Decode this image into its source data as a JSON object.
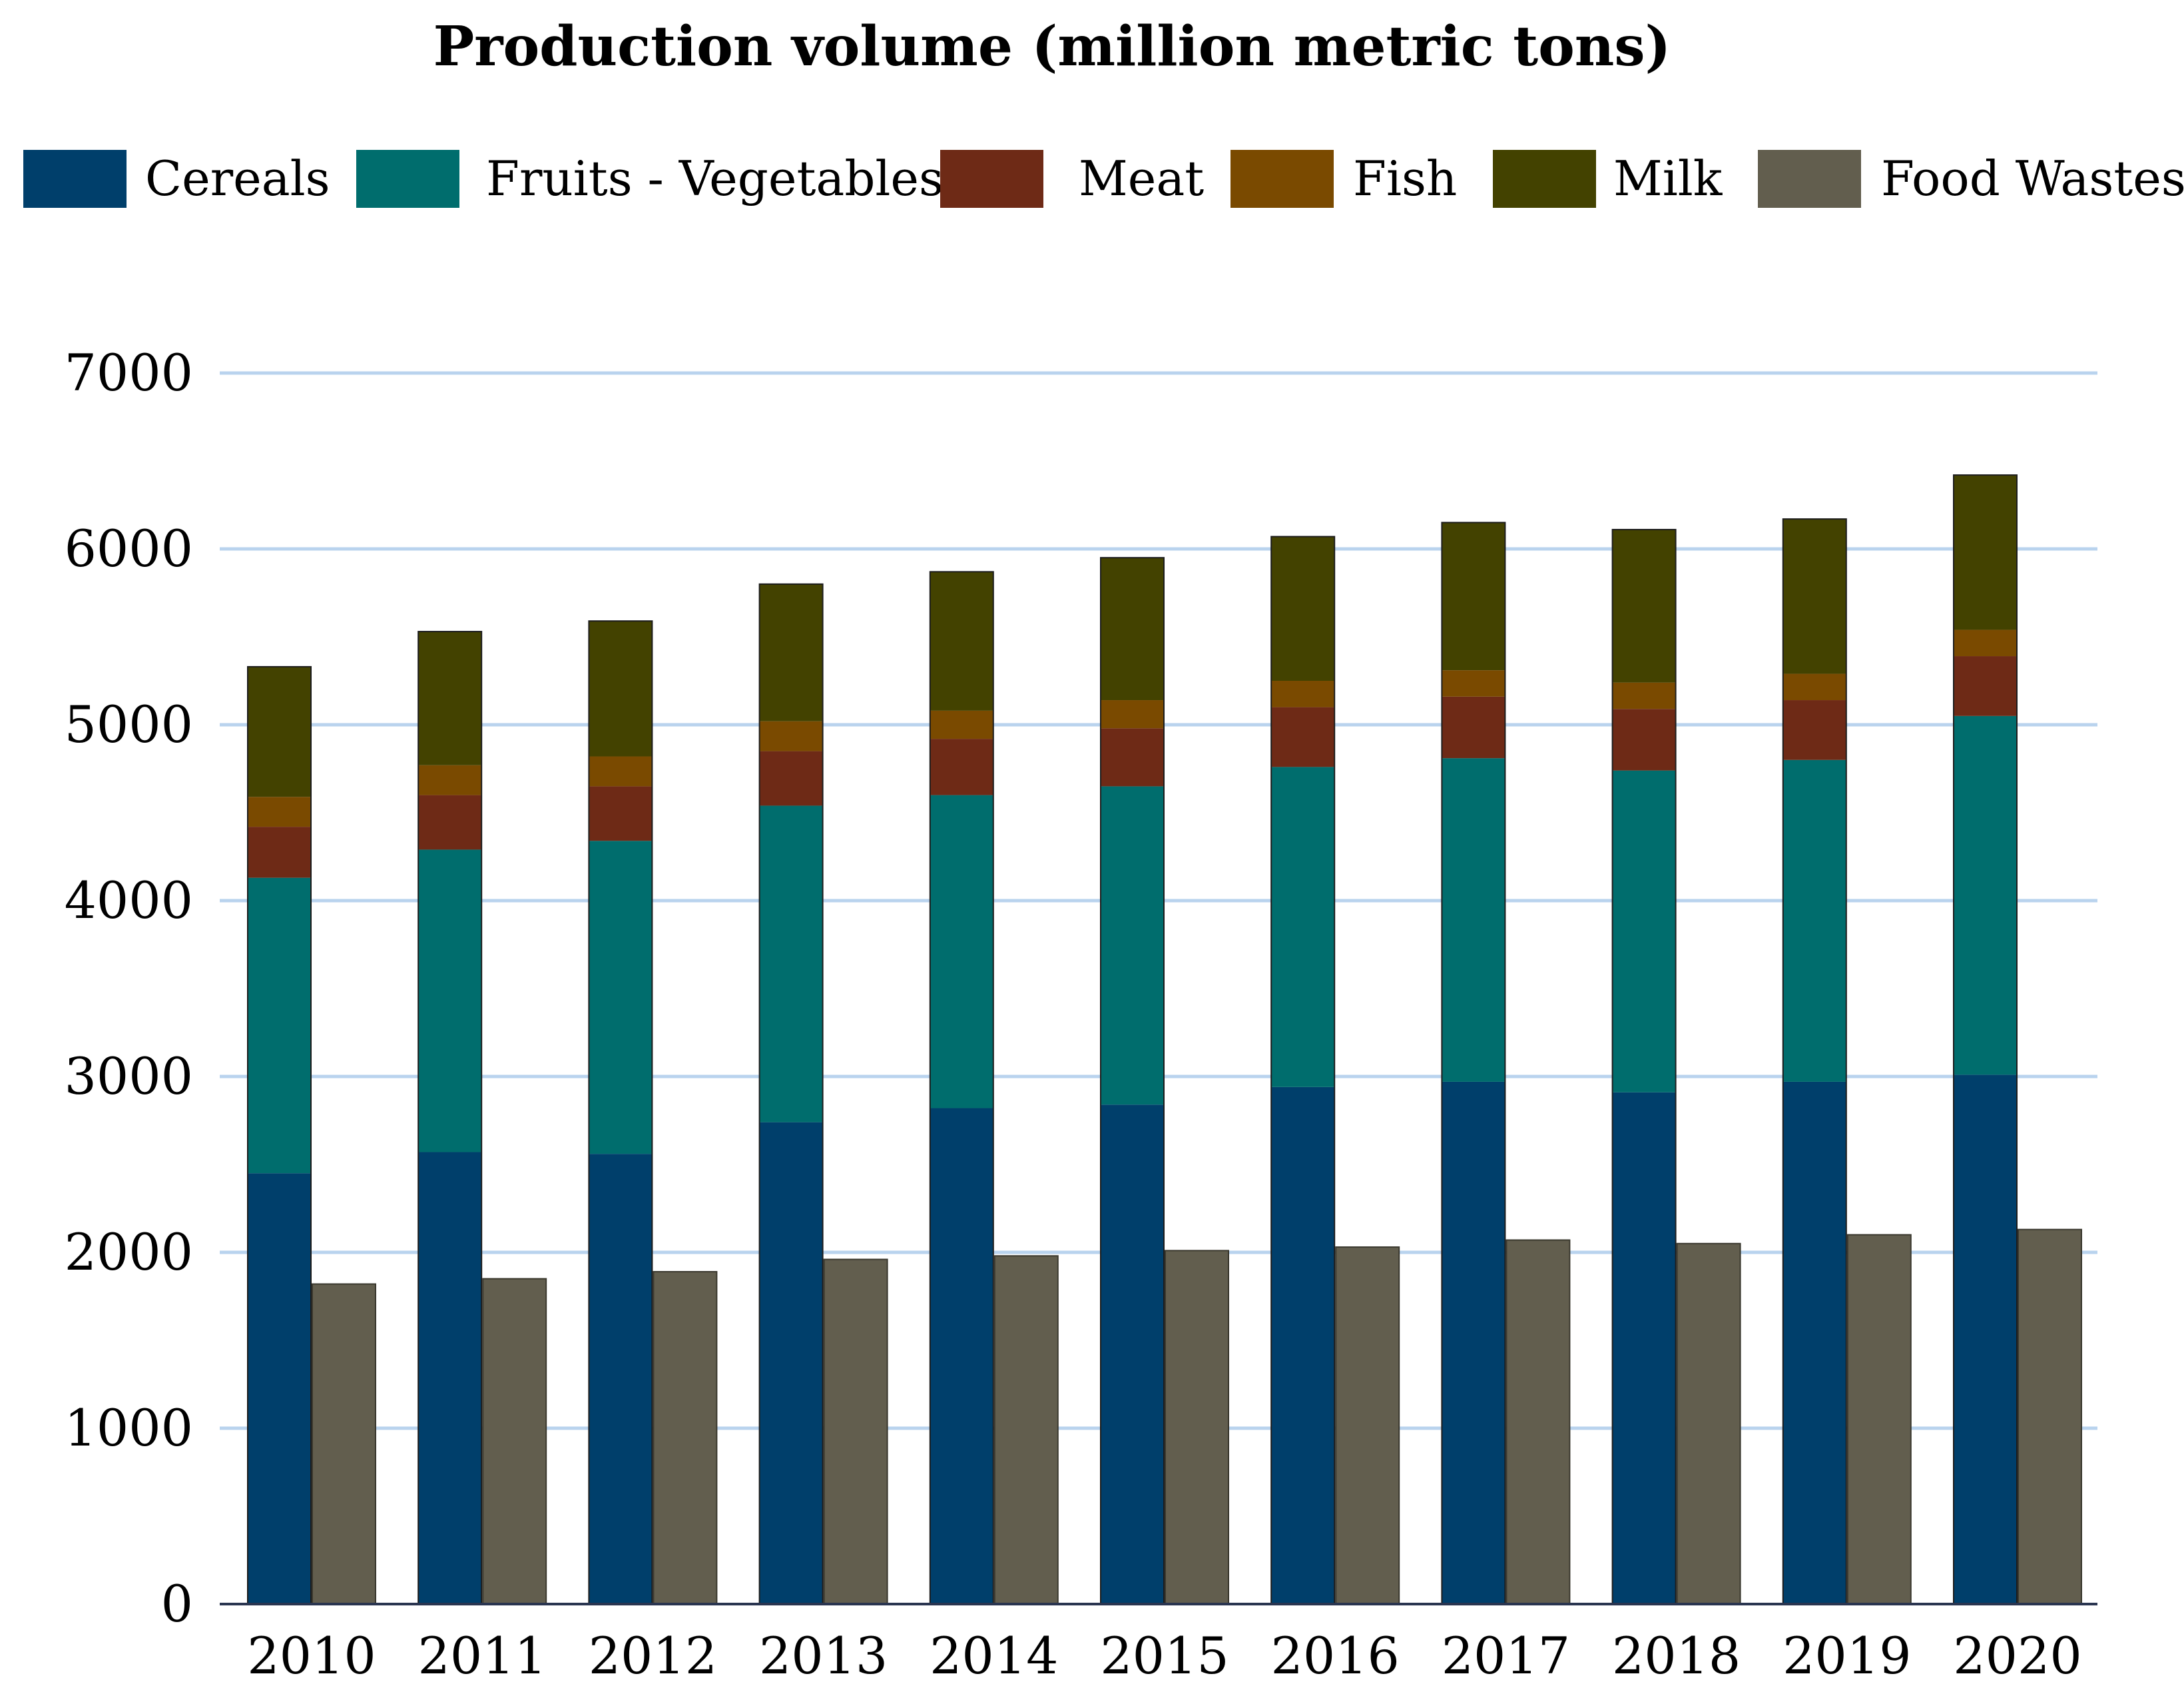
{
  "chart_data": {
    "type": "bar",
    "title": "Production volume (million metric tons)",
    "xlabel": "",
    "ylabel": "",
    "ylim": [
      0,
      7000
    ],
    "yticks": [
      0,
      1000,
      2000,
      3000,
      4000,
      5000,
      6000,
      7000
    ],
    "grid": true,
    "legend_position": "top",
    "categories": [
      "2010",
      "2011",
      "2012",
      "2013",
      "2014",
      "2015",
      "2016",
      "2017",
      "2018",
      "2019",
      "2020"
    ],
    "stacked_series": [
      {
        "name": "Cereals",
        "color": "#003f6b",
        "values": [
          2450,
          2570,
          2560,
          2740,
          2820,
          2840,
          2940,
          2970,
          2910,
          2970,
          3010
        ]
      },
      {
        "name": "Fruits - Vegetables",
        "color": "#006d6d",
        "values": [
          1680,
          1720,
          1780,
          1800,
          1780,
          1810,
          1820,
          1840,
          1830,
          1830,
          2040
        ]
      },
      {
        "name": "Meat",
        "color": "#6e2a16",
        "values": [
          290,
          310,
          310,
          310,
          320,
          330,
          340,
          350,
          350,
          340,
          340
        ]
      },
      {
        "name": "Fish",
        "color": "#7a4a00",
        "values": [
          170,
          170,
          170,
          170,
          160,
          160,
          150,
          150,
          150,
          150,
          150
        ]
      },
      {
        "name": "Milk",
        "color": "#434200",
        "values": [
          740,
          760,
          770,
          780,
          790,
          810,
          820,
          840,
          870,
          880,
          880
        ]
      }
    ],
    "side_series": {
      "name": "Food Wastes",
      "color": "#625e4e",
      "values": [
        1820,
        1850,
        1890,
        1960,
        1980,
        2010,
        2030,
        2070,
        2050,
        2100,
        2130
      ]
    }
  }
}
